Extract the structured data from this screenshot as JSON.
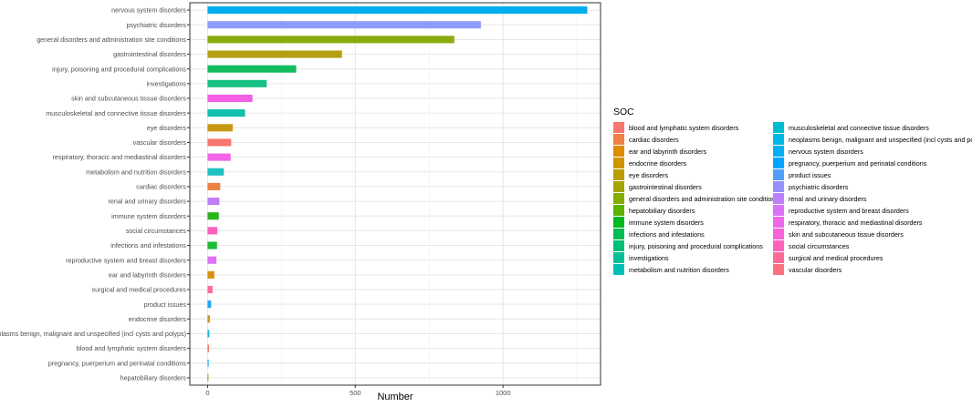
{
  "chart_data": {
    "type": "bar",
    "orientation": "horizontal",
    "xlabel": "Number",
    "ylabel": "",
    "xlim": [
      -60,
      1330
    ],
    "xticks": [
      0,
      500,
      1000
    ],
    "grid": true,
    "legend_title": "SOC",
    "legend_position": "right",
    "categories": [
      "nervous system disorders",
      "psychiatric disorders",
      "general disorders and administration site conditions",
      "gastrointestinal disorders",
      "injury, poisoning and procedural complications",
      "investigations",
      "skin and subcutaneous tissue disorders",
      "musculoskeletal and connective tissue disorders",
      "eye disorders",
      "vascular disorders",
      "respiratory, thoracic and mediastinal disorders",
      "metabolism and nutrition disorders",
      "cardiac disorders",
      "renal and urinary disorders",
      "immune system disorders",
      "social circumstances",
      "infections and infestations",
      "reproductive system and breast disorders",
      "ear and labyrinth disorders",
      "surgical and medical procedures",
      "product issues",
      "endocrine disorders",
      "neoplasms benign, malignant and unspecified (incl cysts and polyps)",
      "blood and lymphatic system disorders",
      "pregnancy, puerperium and perinatal conditions",
      "hepatobiliary disorders"
    ],
    "values": [
      1285,
      925,
      835,
      455,
      300,
      200,
      152,
      127,
      85,
      80,
      78,
      55,
      43,
      40,
      38,
      33,
      32,
      30,
      23,
      17,
      12,
      8,
      6,
      5,
      4,
      3
    ],
    "bar_colors": [
      "#00ADEE",
      "#8E9BFA",
      "#8BAA0F",
      "#B5A012",
      "#12BC5E",
      "#17C185",
      "#F35EE5",
      "#12BFAE",
      "#C79812",
      "#F8766D",
      "#F265E9",
      "#1EC1C0",
      "#EE8044",
      "#C17DF7",
      "#2BB31C",
      "#FB5FBE",
      "#1CBA38",
      "#DE70F5",
      "#DA9010",
      "#FD6CA2",
      "#1CA5F5",
      "#CB9A1A",
      "#16B5D8",
      "#F87969",
      "#2DB5F0",
      "#86A915"
    ],
    "legend": [
      {
        "label": "blood and lymphatic system disorders",
        "color": "#F8766D"
      },
      {
        "label": "cardiac disorders",
        "color": "#EE8044"
      },
      {
        "label": "ear and labyrinth disorders",
        "color": "#E08B00"
      },
      {
        "label": "endocrine disorders",
        "color": "#CF9400"
      },
      {
        "label": "eye disorders",
        "color": "#BB9D00"
      },
      {
        "label": "gastrointestinal disorders",
        "color": "#A3A500"
      },
      {
        "label": "general disorders and administration site conditions",
        "color": "#85AD00"
      },
      {
        "label": "hepatobiliary disorders",
        "color": "#5BB300"
      },
      {
        "label": "immune system disorders",
        "color": "#00B81F"
      },
      {
        "label": "infections and infestations",
        "color": "#00BC51"
      },
      {
        "label": "injury, poisoning and procedural complications",
        "color": "#00BF76"
      },
      {
        "label": "investigations",
        "color": "#00C097"
      },
      {
        "label": "metabolism and nutrition disorders",
        "color": "#00C0B5"
      },
      {
        "label": "musculoskeletal and connective tissue disorders",
        "color": "#00BDD0"
      },
      {
        "label": "neoplasms benign, malignant and unspecified (incl cysts and polyps)",
        "color": "#00B8E7"
      },
      {
        "label": "nervous system disorders",
        "color": "#00B0F6"
      },
      {
        "label": "pregnancy, puerperium and perinatal conditions",
        "color": "#00A5FF"
      },
      {
        "label": "product issues",
        "color": "#529EFF"
      },
      {
        "label": "psychiatric disorders",
        "color": "#9590FF"
      },
      {
        "label": "renal and urinary disorders",
        "color": "#BF80FF"
      },
      {
        "label": "reproductive system and breast disorders",
        "color": "#DC71FA"
      },
      {
        "label": "respiratory, thoracic and mediastinal disorders",
        "color": "#EF67EB"
      },
      {
        "label": "skin and subcutaneous tissue disorders",
        "color": "#FA62D9"
      },
      {
        "label": "social circumstances",
        "color": "#FF62BC"
      },
      {
        "label": "surgical and medical procedures",
        "color": "#FF6A98"
      },
      {
        "label": "vascular disorders",
        "color": "#FC717F"
      }
    ]
  }
}
